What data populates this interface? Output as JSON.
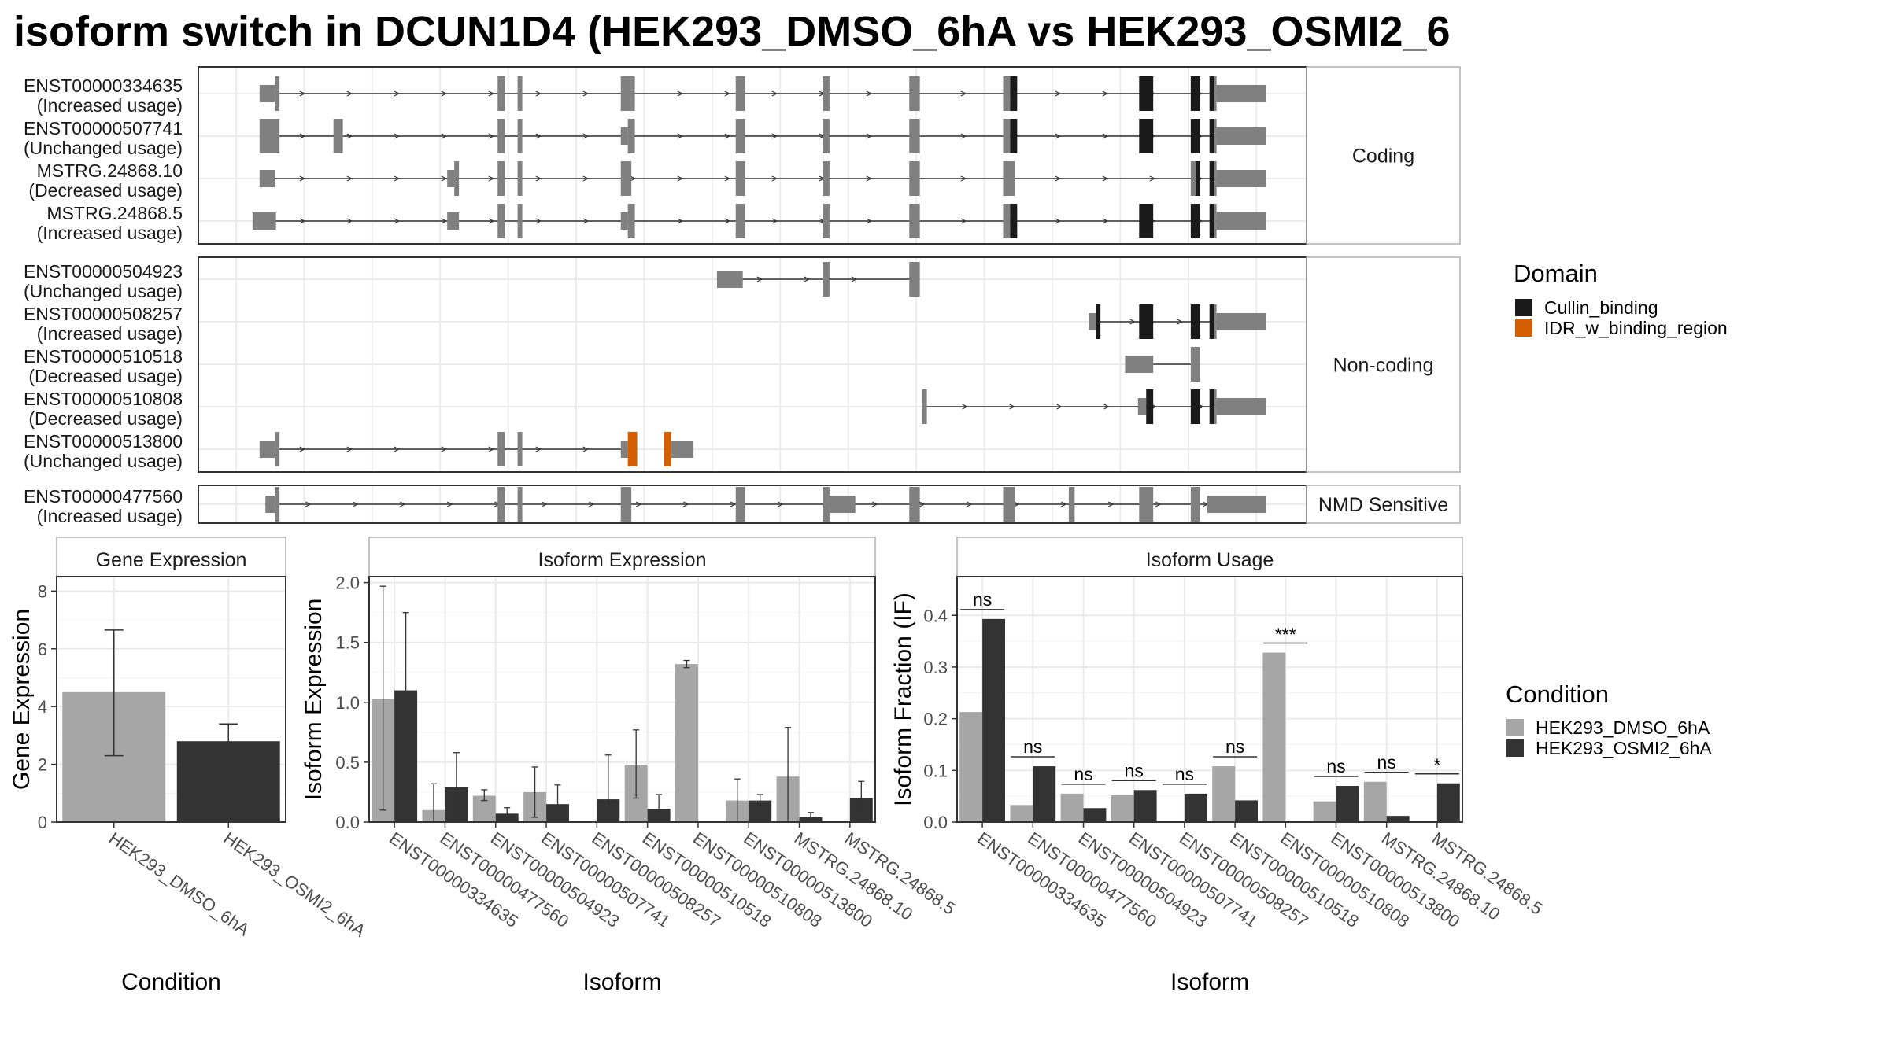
{
  "title": "isoform switch in DCUN1D4 (HEK293_DMSO_6hA vs HEK293_OSMI2_6",
  "colors": {
    "exon": "#808080",
    "cullin": "#1a1a1a",
    "idr": "#d55e00",
    "dmso": "#a6a6a6",
    "osmi": "#333333",
    "panel_border": "#333333",
    "grid": "#ebebeb"
  },
  "domain_legend": {
    "title": "Domain",
    "items": [
      {
        "label": "Cullin_binding",
        "color": "#1a1a1a"
      },
      {
        "label": "IDR_w_binding_region",
        "color": "#d55e00"
      }
    ]
  },
  "condition_legend": {
    "title": "Condition",
    "items": [
      {
        "label": "HEK293_DMSO_6hA",
        "color": "#a6a6a6"
      },
      {
        "label": "HEK293_OSMI2_6hA",
        "color": "#333333"
      }
    ]
  },
  "transcript_groups": [
    {
      "label": "Coding",
      "transcripts": [
        {
          "id": "ENST00000334635",
          "usage": "(Increased usage)",
          "start": 2,
          "end": 86.5,
          "exons": [
            [
              2,
              3.3,
              "t"
            ],
            [
              3.3,
              3.7,
              "f"
            ],
            [
              22.3,
              22.9,
              "f"
            ],
            [
              24,
              24.4,
              "f"
            ],
            [
              32.8,
              33.7,
              "f"
            ],
            [
              33.7,
              34,
              "f"
            ],
            [
              42.6,
              43.4,
              "f"
            ],
            [
              50,
              50.6,
              "f"
            ],
            [
              57.4,
              58.3,
              "f"
            ],
            [
              65.4,
              66,
              "f"
            ],
            [
              66,
              66.6,
              "c"
            ],
            [
              77,
              78.2,
              "c"
            ],
            [
              81.4,
              82.2,
              "c"
            ],
            [
              83,
              83.4,
              "c"
            ],
            [
              83.4,
              83.6,
              "f"
            ],
            [
              83.6,
              87.8,
              "t"
            ]
          ]
        },
        {
          "id": "ENST00000507741",
          "usage": "(Unchanged usage)",
          "start": 2,
          "end": 86.5,
          "exons": [
            [
              2,
              3.7,
              "f"
            ],
            [
              8.3,
              9.1,
              "f"
            ],
            [
              22.3,
              22.9,
              "f"
            ],
            [
              24,
              24.4,
              "f"
            ],
            [
              32.8,
              33.4,
              "t"
            ],
            [
              33.4,
              34,
              "f"
            ],
            [
              42.6,
              43.4,
              "f"
            ],
            [
              50,
              50.6,
              "f"
            ],
            [
              57.4,
              58.3,
              "f"
            ],
            [
              65.4,
              66,
              "f"
            ],
            [
              66,
              66.6,
              "c"
            ],
            [
              77,
              78.2,
              "c"
            ],
            [
              81.4,
              82.2,
              "c"
            ],
            [
              83,
              83.4,
              "c"
            ],
            [
              83.4,
              83.6,
              "f"
            ],
            [
              83.6,
              87.8,
              "t"
            ]
          ]
        },
        {
          "id": "MSTRG.24868.10",
          "usage": "(Decreased usage)",
          "start": 2,
          "end": 86.5,
          "exons": [
            [
              2,
              3.3,
              "t"
            ],
            [
              18,
              18.6,
              "t"
            ],
            [
              18.6,
              19,
              "f"
            ],
            [
              22.3,
              22.9,
              "f"
            ],
            [
              24,
              24.4,
              "f"
            ],
            [
              32.8,
              33.7,
              "f"
            ],
            [
              42.6,
              43.4,
              "f"
            ],
            [
              50,
              50.6,
              "f"
            ],
            [
              57.4,
              58.3,
              "f"
            ],
            [
              65.4,
              66.4,
              "f"
            ],
            [
              81.4,
              81.8,
              "f"
            ],
            [
              81.8,
              82.2,
              "c"
            ],
            [
              83,
              83.4,
              "c"
            ],
            [
              83.4,
              83.6,
              "f"
            ],
            [
              83.6,
              87.8,
              "t"
            ]
          ]
        },
        {
          "id": "MSTRG.24868.5",
          "usage": "(Increased usage)",
          "start": 2,
          "end": 86.5,
          "exons": [
            [
              1.4,
              3.4,
              "t"
            ],
            [
              18,
              19,
              "t"
            ],
            [
              22.3,
              22.9,
              "f"
            ],
            [
              24,
              24.4,
              "f"
            ],
            [
              32.8,
              33.4,
              "t"
            ],
            [
              33.4,
              34,
              "f"
            ],
            [
              42.6,
              43.4,
              "f"
            ],
            [
              50,
              50.6,
              "f"
            ],
            [
              57.4,
              58.3,
              "f"
            ],
            [
              65.4,
              66,
              "f"
            ],
            [
              66,
              66.6,
              "c"
            ],
            [
              77,
              78.2,
              "c"
            ],
            [
              81.4,
              82.2,
              "c"
            ],
            [
              83,
              83.4,
              "c"
            ],
            [
              83.4,
              83.6,
              "f"
            ],
            [
              83.6,
              87.8,
              "t"
            ]
          ]
        }
      ]
    },
    {
      "label": "Non-coding",
      "transcripts": [
        {
          "id": "ENST00000504923",
          "usage": "(Unchanged usage)",
          "start": 41,
          "end": 58,
          "exons": [
            [
              41,
              43.2,
              "t"
            ],
            [
              50,
              50.6,
              "f"
            ],
            [
              57.4,
              58.3,
              "f"
            ]
          ]
        },
        {
          "id": "ENST00000508257",
          "usage": "(Increased usage)",
          "start": 72.8,
          "end": 86.5,
          "exons": [
            [
              72.7,
              73.3,
              "t"
            ],
            [
              73.3,
              73.7,
              "c"
            ],
            [
              77,
              78.2,
              "c"
            ],
            [
              81.4,
              82.2,
              "c"
            ],
            [
              83,
              83.4,
              "c"
            ],
            [
              83.4,
              83.6,
              "f"
            ],
            [
              83.6,
              87.8,
              "t"
            ]
          ]
        },
        {
          "id": "ENST00000510518",
          "usage": "(Decreased usage)",
          "start": 77.5,
          "end": 82.2,
          "exons": [
            [
              75.8,
              78.2,
              "t"
            ],
            [
              81.4,
              82.2,
              "f"
            ]
          ]
        },
        {
          "id": "ENST00000510808",
          "usage": "(Decreased usage)",
          "start": 58.5,
          "end": 86.5,
          "exons": [
            [
              58.5,
              58.9,
              "f"
            ],
            [
              76.9,
              77.6,
              "t"
            ],
            [
              77.6,
              78.2,
              "c"
            ],
            [
              81.4,
              82.2,
              "c"
            ],
            [
              83,
              83.4,
              "c"
            ],
            [
              83.4,
              83.6,
              "f"
            ],
            [
              83.6,
              87.8,
              "t"
            ]
          ]
        },
        {
          "id": "ENST00000513800",
          "usage": "(Unchanged usage)",
          "start": 2,
          "end": 34,
          "exons": [
            [
              2,
              3.3,
              "t"
            ],
            [
              3.3,
              3.7,
              "f"
            ],
            [
              22.3,
              22.9,
              "f"
            ],
            [
              24,
              24.4,
              "f"
            ],
            [
              32.8,
              33.4,
              "t"
            ],
            [
              33.4,
              34.2,
              "i"
            ],
            [
              36.5,
              37.1,
              "i"
            ],
            [
              37.1,
              39,
              "t"
            ]
          ]
        }
      ]
    },
    {
      "label": "NMD Sensitive",
      "transcripts": [
        {
          "id": "ENST00000477560",
          "usage": "(Increased usage)",
          "start": 2.5,
          "end": 86.5,
          "exons": [
            [
              2.5,
              3.3,
              "t"
            ],
            [
              3.3,
              3.7,
              "f"
            ],
            [
              22.3,
              22.9,
              "f"
            ],
            [
              24,
              24.4,
              "f"
            ],
            [
              32.8,
              33.7,
              "f"
            ],
            [
              42.6,
              43.4,
              "f"
            ],
            [
              50,
              50.6,
              "f"
            ],
            [
              50.6,
              52.8,
              "t"
            ],
            [
              57.4,
              58.3,
              "f"
            ],
            [
              65.4,
              66.4,
              "f"
            ],
            [
              71,
              71.5,
              "f"
            ],
            [
              77,
              78.2,
              "f"
            ],
            [
              81.4,
              82.2,
              "f"
            ],
            [
              82.8,
              87.8,
              "t"
            ]
          ]
        }
      ]
    }
  ],
  "chart_data": [
    {
      "type": "bar",
      "title": "Gene Expression",
      "xlabel": "Condition",
      "ylabel": "Gene Expression",
      "ylim": [
        0,
        8.5
      ],
      "yticks": [
        0,
        2,
        4,
        6,
        8
      ],
      "categories": [
        "HEK293_DMSO_6hA",
        "HEK293_OSMI2_6hA"
      ],
      "values": [
        4.5,
        2.8
      ],
      "error_low": [
        2.3,
        2.2
      ],
      "error_high": [
        6.65,
        3.4
      ],
      "colors": [
        "#a6a6a6",
        "#333333"
      ]
    },
    {
      "type": "bar",
      "title": "Isoform Expression",
      "xlabel": "Isoform",
      "ylabel": "Isoform Expression",
      "ylim": [
        0,
        2.05
      ],
      "yticks": [
        "0.0",
        "0.5",
        "1.0",
        "1.5",
        "2.0"
      ],
      "categories": [
        "ENST00000334635",
        "ENST00000477560",
        "ENST00000504923",
        "ENST00000507741",
        "ENST00000508257",
        "ENST00000510518",
        "ENST00000510808",
        "ENST00000513800",
        "MSTRG.24868.10",
        "MSTRG.24868.5"
      ],
      "series": [
        {
          "name": "HEK293_DMSO_6hA",
          "values": [
            1.03,
            0.1,
            0.22,
            0.25,
            0.0,
            0.48,
            1.32,
            0.18,
            0.38,
            0.0
          ],
          "err_low": [
            0.1,
            0.0,
            0.18,
            0.04,
            null,
            0.2,
            1.29,
            0.0,
            0.0,
            null
          ],
          "err_high": [
            1.97,
            0.32,
            0.27,
            0.46,
            null,
            0.77,
            1.35,
            0.36,
            0.79,
            null
          ]
        },
        {
          "name": "HEK293_OSMI2_6hA",
          "values": [
            1.1,
            0.29,
            0.07,
            0.15,
            0.19,
            0.11,
            0.0,
            0.18,
            0.04,
            0.2
          ],
          "err_low": [
            0.47,
            0.0,
            0.02,
            0.0,
            0.0,
            0.0,
            null,
            0.14,
            0.0,
            0.06
          ],
          "err_high": [
            1.75,
            0.58,
            0.12,
            0.31,
            0.56,
            0.23,
            null,
            0.23,
            0.08,
            0.34
          ]
        }
      ]
    },
    {
      "type": "bar",
      "title": "Isoform Usage",
      "xlabel": "Isoform",
      "ylabel": "Isoform Fraction (IF)",
      "ylim": [
        0,
        0.475
      ],
      "yticks": [
        "0.0",
        "0.1",
        "0.2",
        "0.3",
        "0.4"
      ],
      "categories": [
        "ENST00000334635",
        "ENST00000477560",
        "ENST00000504923",
        "ENST00000507741",
        "ENST00000508257",
        "ENST00000510518",
        "ENST00000510808",
        "ENST00000513800",
        "MSTRG.24868.10",
        "MSTRG.24868.5"
      ],
      "series": [
        {
          "name": "HEK293_DMSO_6hA",
          "values": [
            0.213,
            0.033,
            0.055,
            0.052,
            0.0,
            0.108,
            0.328,
            0.04,
            0.078,
            0.0
          ]
        },
        {
          "name": "HEK293_OSMI2_6hA",
          "values": [
            0.393,
            0.108,
            0.027,
            0.062,
            0.055,
            0.042,
            0.0,
            0.07,
            0.012,
            0.075
          ]
        }
      ],
      "significance": [
        "ns",
        "ns",
        "ns",
        "ns",
        "ns",
        "ns",
        "***",
        "ns",
        "ns",
        "*"
      ]
    }
  ]
}
